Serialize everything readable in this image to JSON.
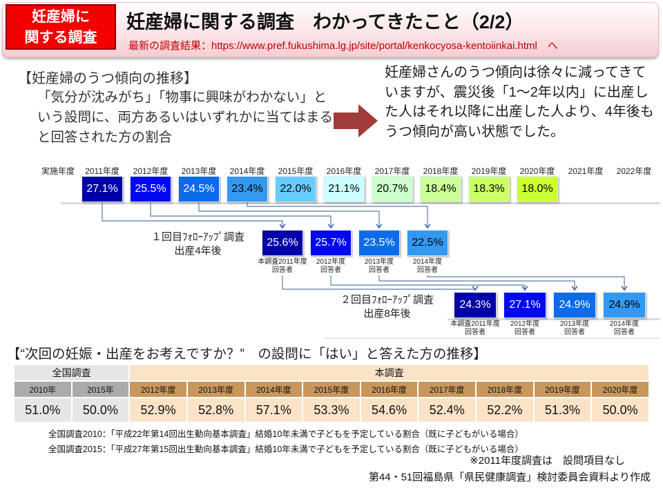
{
  "colors": {
    "tag_red": "#f30000",
    "subtitle_red": "#c00000",
    "block_arrow_red": "#a23b3b",
    "connector_line": "#7590b4",
    "connector_arrow": "#3a62a8"
  },
  "header": {
    "tag_line1": "妊産婦に",
    "tag_line2": "関する調査",
    "title": "妊産婦に関する調査　わかってきたこと（2/2）",
    "subtitle": "最新の調査結果：https://www.pref.fukushima.lg.jp/site/portal/kenkocyosa-kentoiinkai.html　へ"
  },
  "intro": {
    "heading": "【妊産婦のうつ傾向の推移】",
    "description": "「気分が沈みがち」「物事に興味がわかない」という設問に、両方あるいはいずれかに当てはまると回答された方の割合",
    "conclusion": "妊産婦さんのうつ傾向は徐々に減ってきていますが、震災後「1～2年以内」に出産した人はそれ以降に出産した人より、4年後もうつ傾向が高い状態でした。"
  },
  "chart": {
    "axis_label": "実施年度",
    "years": [
      "2011年度",
      "2012年度",
      "2013年度",
      "2014年度",
      "2015年度",
      "2016年度",
      "2017年度",
      "2018年度",
      "2019年度",
      "2020年度",
      "2021年度",
      "2022年度"
    ],
    "main": [
      {
        "value": "27.1%",
        "bg": "#0000a8",
        "fg": "#ffffff"
      },
      {
        "value": "25.5%",
        "bg": "#0008f0",
        "fg": "#ffffff"
      },
      {
        "value": "24.5%",
        "bg": "#0b6be8",
        "fg": "#ffffff"
      },
      {
        "value": "23.4%",
        "bg": "#3399f0",
        "fg": "#000000"
      },
      {
        "value": "22.0%",
        "bg": "#66ccff",
        "fg": "#000000"
      },
      {
        "value": "21.1%",
        "bg": "#ccffff",
        "fg": "#000000"
      },
      {
        "value": "20.7%",
        "bg": "#ccffcc",
        "fg": "#000000"
      },
      {
        "value": "18.4%",
        "bg": "#ccff99",
        "fg": "#000000"
      },
      {
        "value": "18.3%",
        "bg": "#ccff66",
        "fg": "#000000"
      },
      {
        "value": "18.0%",
        "bg": "#ccff33",
        "fg": "#000000"
      }
    ],
    "followup1": {
      "label_line1": "１回目ﾌｫﾛｰｱｯﾌﾟ調査",
      "label_line2": "出産4年後",
      "items": [
        {
          "value": "25.6%",
          "bg": "#0000a8",
          "fg": "#ffffff",
          "caption1": "本調査2011年度",
          "caption2": "回答者"
        },
        {
          "value": "25.7%",
          "bg": "#0008f0",
          "fg": "#ffffff",
          "caption1": "2012年度",
          "caption2": "回答者"
        },
        {
          "value": "23.5%",
          "bg": "#0b6be8",
          "fg": "#ffffff",
          "caption1": "2013年度",
          "caption2": "回答者"
        },
        {
          "value": "22.5%",
          "bg": "#3399f0",
          "fg": "#000000",
          "caption1": "2014年度",
          "caption2": "回答者"
        }
      ]
    },
    "followup2": {
      "label_line1": "２回目ﾌｫﾛｰｱｯﾌﾟ調査",
      "label_line2": "出産8年後",
      "items": [
        {
          "value": "24.3%",
          "bg": "#0000a8",
          "fg": "#ffffff",
          "caption1": "本調査2011年度",
          "caption2": "回答者"
        },
        {
          "value": "27.1%",
          "bg": "#0008f0",
          "fg": "#ffffff",
          "caption1": "2012年度",
          "caption2": "回答者"
        },
        {
          "value": "24.9%",
          "bg": "#0b6be8",
          "fg": "#ffffff",
          "caption1": "2013年度",
          "caption2": "回答者"
        },
        {
          "value": "24.9%",
          "bg": "#3399f0",
          "fg": "#000000",
          "caption1": "2014年度",
          "caption2": "回答者"
        }
      ]
    }
  },
  "chart_data": [
    {
      "type": "bar",
      "title": "妊産婦のうつ傾向の推移",
      "unit": "%",
      "series": [
        {
          "name": "実施年度（本調査）",
          "categories": [
            "2011年度",
            "2012年度",
            "2013年度",
            "2014年度",
            "2015年度",
            "2016年度",
            "2017年度",
            "2018年度",
            "2019年度",
            "2020年度"
          ],
          "values": [
            27.1,
            25.5,
            24.5,
            23.4,
            22.0,
            21.1,
            20.7,
            18.4,
            18.3,
            18.0
          ]
        },
        {
          "name": "１回目ﾌｫﾛｰｱｯﾌﾟ調査 出産4年後",
          "categories": [
            "本調査2011年度回答者",
            "2012年度回答者",
            "2013年度回答者",
            "2014年度回答者"
          ],
          "values": [
            25.6,
            25.7,
            23.5,
            22.5
          ]
        },
        {
          "name": "２回目ﾌｫﾛｰｱｯﾌﾟ調査 出産8年後",
          "categories": [
            "本調査2011年度回答者",
            "2012年度回答者",
            "2013年度回答者",
            "2014年度回答者"
          ],
          "values": [
            24.3,
            27.1,
            24.9,
            24.9
          ]
        }
      ]
    },
    {
      "type": "table",
      "title": "“次回の妊娠・出産をお考えですか？”の設問に「はい」と答えた方の推移",
      "unit": "%",
      "series": [
        {
          "name": "全国調査",
          "categories": [
            "2010年",
            "2015年"
          ],
          "values": [
            51.0,
            50.0
          ]
        },
        {
          "name": "本調査",
          "categories": [
            "2012年度",
            "2013年度",
            "2014年度",
            "2015年度",
            "2016年度",
            "2017年度",
            "2018年度",
            "2019年度",
            "2020年度"
          ],
          "values": [
            52.9,
            52.8,
            57.1,
            53.3,
            54.6,
            52.4,
            52.2,
            51.3,
            50.0
          ]
        }
      ]
    }
  ],
  "section2": {
    "heading": "【“次回の妊娠・出産をお考えですか？”　の設問に「はい」と答えた方の推移】"
  },
  "table": {
    "group_headers": [
      {
        "label": "全国調査",
        "span": 2,
        "group": "national"
      },
      {
        "label": "本調査",
        "span": 9,
        "group": "survey"
      }
    ],
    "columns": [
      {
        "year": "2010年",
        "value": "51.0%",
        "group": "national"
      },
      {
        "year": "2015年",
        "value": "50.0%",
        "group": "national"
      },
      {
        "year": "2012年度",
        "value": "52.9%",
        "group": "survey"
      },
      {
        "year": "2013年度",
        "value": "52.8%",
        "group": "survey"
      },
      {
        "year": "2014年度",
        "value": "57.1%",
        "group": "survey"
      },
      {
        "year": "2015年度",
        "value": "53.3%",
        "group": "survey"
      },
      {
        "year": "2016年度",
        "value": "54.6%",
        "group": "survey"
      },
      {
        "year": "2017年度",
        "value": "52.4%",
        "group": "survey"
      },
      {
        "year": "2018年度",
        "value": "52.2%",
        "group": "survey"
      },
      {
        "year": "2019年度",
        "value": "51.3%",
        "group": "survey"
      },
      {
        "year": "2020年度",
        "value": "50.0%",
        "group": "survey"
      }
    ],
    "group_colors": {
      "national_header": "#e7e6e6",
      "national_year": "#acaaad",
      "national_value": "#e7e6e6",
      "survey_header": "#fbe3c8",
      "survey_year": "#c9975c",
      "survey_value": "#fbe3c8"
    }
  },
  "footnotes": [
    "全国調査2010：「平成22年第14回出生動向基本調査」結婚10年未満で子どもを予定している割合（既に子どもがいる場合）",
    "全国調査2015：「平成27年第15回出生動向基本調査」結婚10年未満で子どもを予定している割合（既に子どもがいる場合）"
  ],
  "notes": [
    "※2011年度調査は　設問項目なし",
    "第44・51回福島県「県民健康調査」検討委員会資料より作成"
  ]
}
